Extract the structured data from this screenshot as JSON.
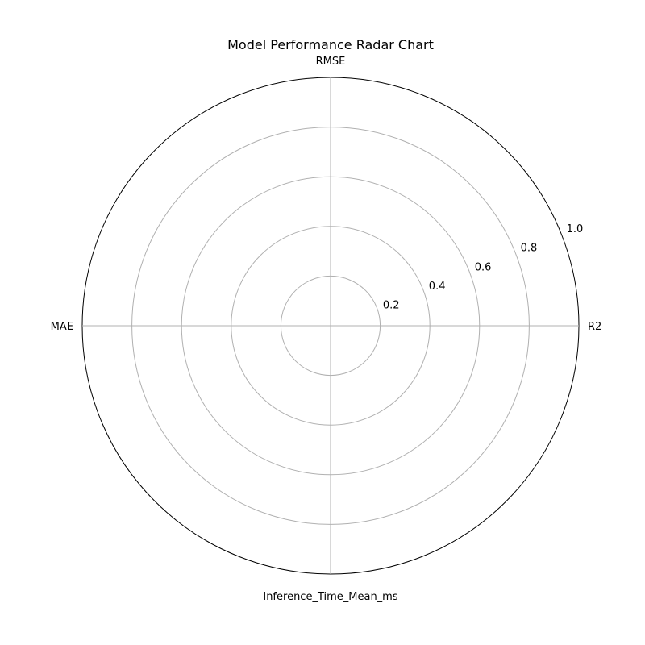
{
  "chart_data": {
    "type": "radar",
    "title": "Model Performance Radar Chart",
    "axes": [
      "R2",
      "RMSE",
      "MAE",
      "Inference_Time_Mean_ms"
    ],
    "rlim": [
      0,
      1.0
    ],
    "r_ticks": [
      "0.2",
      "0.4",
      "0.6",
      "0.8",
      "1.0"
    ],
    "r_tick_values": [
      0.2,
      0.4,
      0.6,
      0.8,
      1.0
    ],
    "grid": true,
    "series": []
  },
  "colors": {
    "grid": "#b0b0b0",
    "outer_ring": "#000000"
  }
}
